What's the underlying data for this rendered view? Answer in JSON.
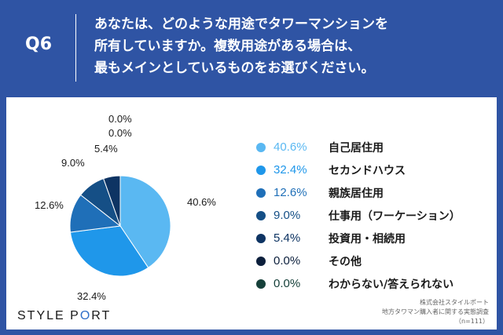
{
  "header": {
    "q_label": "Q6",
    "question_lines": [
      "あなたは、どのような用途でタワーマンションを",
      "所有していますか。複数用途がある場合は、",
      "最もメインとしているものをお選びください。"
    ]
  },
  "chart_data": {
    "type": "pie",
    "unit": "%",
    "slices": [
      {
        "label": "自己居住用",
        "value": 40.6,
        "display": "40.6%",
        "color": "#5ab8f2",
        "text_color": "#5ab8f2"
      },
      {
        "label": "セカンドハウス",
        "value": 32.4,
        "display": "32.4%",
        "color": "#1f97ea",
        "text_color": "#1f97ea"
      },
      {
        "label": "親族居住用",
        "value": 12.6,
        "display": "12.6%",
        "color": "#1f6fb8",
        "text_color": "#1f6fb8"
      },
      {
        "label": "仕事用（ワーケーション）",
        "value": 9.0,
        "display": "9.0%",
        "color": "#154f86",
        "text_color": "#154f86"
      },
      {
        "label": "投資用・相続用",
        "value": 5.4,
        "display": "5.4%",
        "color": "#0e3463",
        "text_color": "#0e3463"
      },
      {
        "label": "その他",
        "value": 0.0,
        "display": "0.0%",
        "color": "#0c1f3c",
        "text_color": "#0c1f3c"
      },
      {
        "label": "わからない/答えられない",
        "value": 0.0,
        "display": "0.0%",
        "color": "#16403a",
        "text_color": "#16403a"
      }
    ]
  },
  "footer": {
    "logo_left": "STYLE P",
    "logo_slash": "O",
    "logo_right": "RT",
    "source_lines": [
      "株式会社スタイルポート",
      "地方タワマン購入者に関する実態調査",
      "（n=111）"
    ]
  }
}
